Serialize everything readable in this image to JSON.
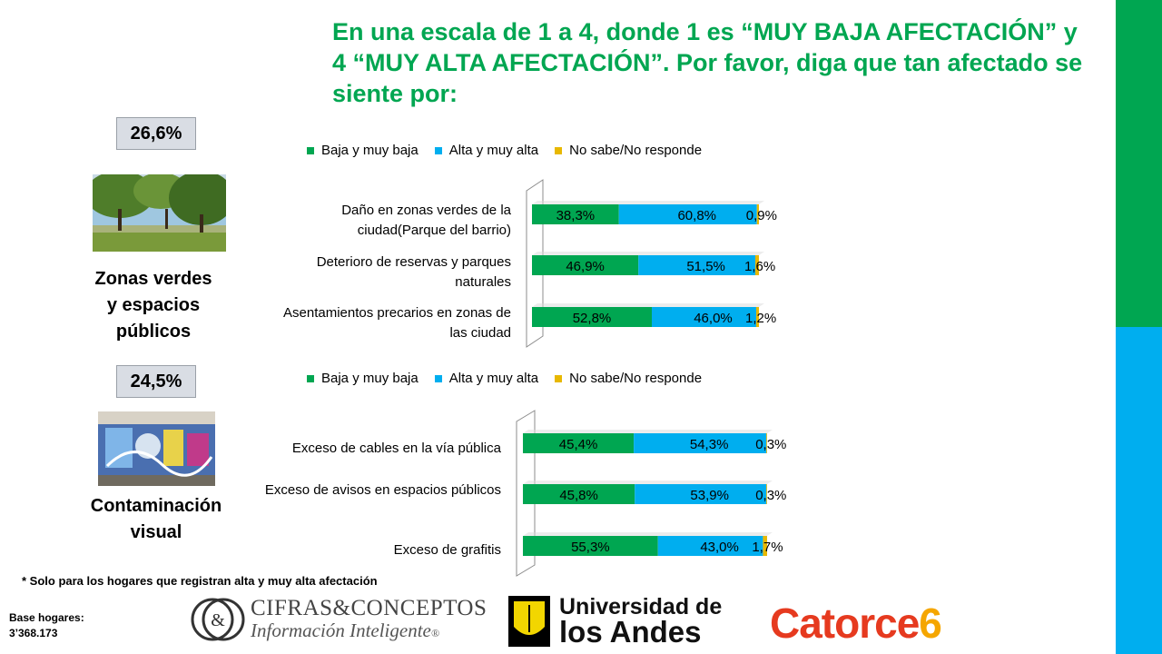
{
  "title": "En una escala de 1 a 4, donde 1 es “MUY BAJA AFECTACIÓN” y 4 “MUY ALTA AFECTACIÓN”. Por favor, diga que tan afectado se siente por:",
  "colors": {
    "green": "#00a651",
    "blue": "#00aeef",
    "yellow": "#e8b800",
    "title": "#00a651"
  },
  "sections": [
    {
      "pct": "26,6%",
      "label": "Zonas verdes y espacios públicos",
      "label_lines": [
        "Zonas verdes",
        "y espacios",
        "públicos"
      ],
      "photo_icon": "park-photo"
    },
    {
      "pct": "24,5%",
      "label": "Contaminación visual",
      "label_lines": [
        "Contaminación",
        "visual"
      ],
      "photo_icon": "graffiti-photo"
    }
  ],
  "legend": [
    "Baja y muy baja",
    "Alta y muy alta",
    "No sabe/No responde"
  ],
  "chart_data": [
    {
      "type": "bar",
      "orientation": "horizontal",
      "stacked": "100%",
      "categories": [
        "Daño en zonas verdes de la ciudad(Parque del barrio)",
        "Deterioro de reservas y parques naturales",
        "Asentamientos precarios en zonas de las ciudad"
      ],
      "series": [
        {
          "name": "Baja y muy baja",
          "values": [
            38.3,
            46.9,
            52.8
          ],
          "labels": [
            "38,3%",
            "46,9%",
            "52,8%"
          ]
        },
        {
          "name": "Alta y muy alta",
          "values": [
            60.8,
            51.5,
            46.0
          ],
          "labels": [
            "60,8%",
            "51,5%",
            "46,0%"
          ]
        },
        {
          "name": "No sabe/No responde",
          "values": [
            0.9,
            1.6,
            1.2
          ],
          "labels": [
            "0,9%",
            "1,6%",
            "1,2%"
          ]
        }
      ],
      "legend_position": "top"
    },
    {
      "type": "bar",
      "orientation": "horizontal",
      "stacked": "100%",
      "categories": [
        "Exceso de cables en la vía pública",
        "Exceso de avisos en espacios públicos",
        "Exceso de grafitis"
      ],
      "series": [
        {
          "name": "Baja y muy baja",
          "values": [
            45.4,
            45.8,
            55.3
          ],
          "labels": [
            "45,4%",
            "45,8%",
            "55,3%"
          ]
        },
        {
          "name": "Alta y muy alta",
          "values": [
            54.3,
            53.9,
            43.0
          ],
          "labels": [
            "54,3%",
            "53,9%",
            "43,0%"
          ]
        },
        {
          "name": "No sabe/No responde",
          "values": [
            0.3,
            0.3,
            1.7
          ],
          "labels": [
            "0,3%",
            "0,3%",
            "1,7%"
          ]
        }
      ],
      "legend_position": "top"
    }
  ],
  "footnote": "* Solo para los hogares que registran alta y muy alta afectación",
  "base": {
    "line1": "Base hogares:",
    "line2": "3’368.173"
  },
  "logos": {
    "cifras": {
      "line1": "CIFRAS&CONCEPTOS",
      "line2": "Información Inteligente",
      "mark": "®",
      "symbol": "&"
    },
    "uniandes": {
      "line1": "Universidad de",
      "line2": "los Andes"
    },
    "catorce": {
      "text": "Catorce",
      "digit": "6"
    }
  }
}
